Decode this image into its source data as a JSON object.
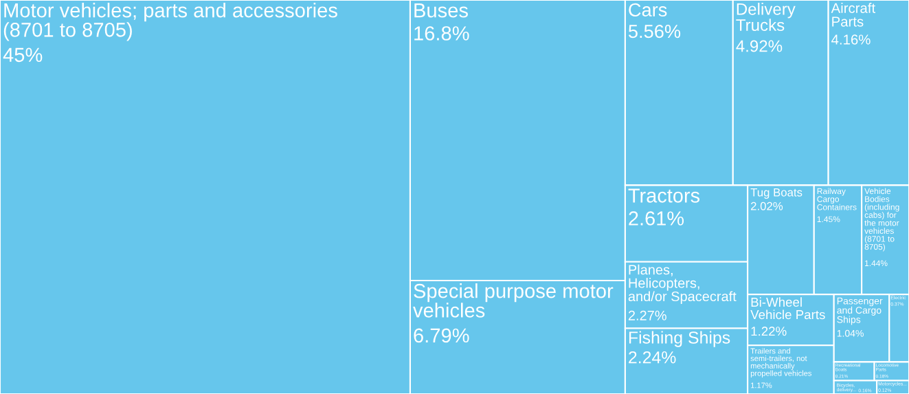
{
  "chart_data": {
    "type": "other",
    "color": "#66c6ec",
    "categories": [
      "Motor vehicles; parts and accessories (8701 to 8705)",
      "Buses",
      "Special purpose motor vehicles",
      "Cars",
      "Delivery Trucks",
      "Aircraft Parts",
      "Tractors",
      "Planes, Helicopters, and/or Spacecraft",
      "Fishing Ships",
      "Tug Boats",
      "Railway Cargo Containers",
      "Vehicle Bodies (including cabs) for the motor vehicles (8701 to 8705)",
      "Bi-Wheel Vehicle Parts",
      "Trailers and semi-trailers, not mechanically propelled vehicles",
      "Passenger and Cargo Ships",
      "Electric",
      "Recreational Boats",
      "Locomotive Parts",
      "Bicycles, delivery...",
      "Motorcycles..."
    ],
    "values": [
      45,
      16.8,
      6.79,
      5.56,
      4.92,
      4.16,
      2.61,
      2.27,
      2.24,
      2.02,
      1.45,
      1.44,
      1.22,
      1.17,
      1.04,
      0.37,
      0.21,
      0.18,
      0.16,
      0.12
    ],
    "value_labels": [
      "45%",
      "16.8%",
      "6.79%",
      "5.56%",
      "4.92%",
      "4.16%",
      "2.61%",
      "2.27%",
      "2.24%",
      "2.02%",
      "1.45%",
      "1.44%",
      "1.22%",
      "1.17%",
      "1.04%",
      "0.37%",
      "0.21%",
      "0.18%",
      "0.16%",
      "0.12%"
    ]
  }
}
